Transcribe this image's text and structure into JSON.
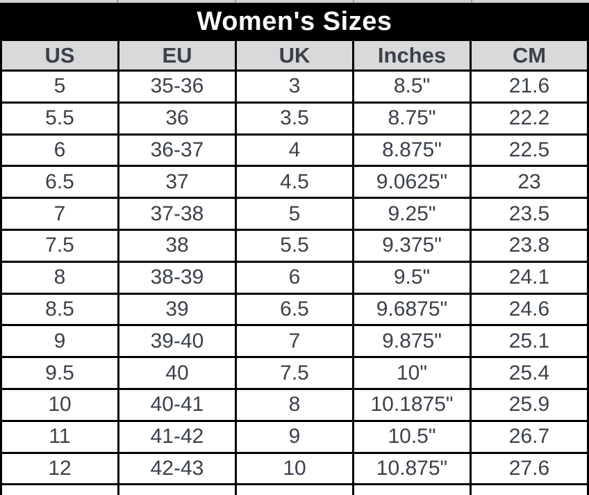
{
  "colors": {
    "title_bg": "#000000",
    "title_text": "#ffffff",
    "header_bg": "#d9d9d9",
    "cell_text": "#3a414b",
    "border": "#000000",
    "top_strip": "#d3d3d3"
  },
  "chart_data": {
    "type": "table",
    "title": "Women's Sizes",
    "columns": [
      "US",
      "EU",
      "UK",
      "Inches",
      "CM"
    ],
    "rows": [
      [
        "5",
        "35-36",
        "3",
        "8.5\"",
        "21.6"
      ],
      [
        "5.5",
        "36",
        "3.5",
        "8.75\"",
        "22.2"
      ],
      [
        "6",
        "36-37",
        "4",
        "8.875\"",
        "22.5"
      ],
      [
        "6.5",
        "37",
        "4.5",
        "9.0625\"",
        "23"
      ],
      [
        "7",
        "37-38",
        "5",
        "9.25\"",
        "23.5"
      ],
      [
        "7.5",
        "38",
        "5.5",
        "9.375\"",
        "23.8"
      ],
      [
        "8",
        "38-39",
        "6",
        "9.5\"",
        "24.1"
      ],
      [
        "8.5",
        "39",
        "6.5",
        "9.6875\"",
        "24.6"
      ],
      [
        "9",
        "39-40",
        "7",
        "9.875\"",
        "25.1"
      ],
      [
        "9.5",
        "40",
        "7.5",
        "10\"",
        "25.4"
      ],
      [
        "10",
        "40-41",
        "8",
        "10.1875\"",
        "25.9"
      ],
      [
        "11",
        "41-42",
        "9",
        "10.5\"",
        "26.7"
      ],
      [
        "12",
        "42-43",
        "10",
        "10.875\"",
        "27.6"
      ]
    ]
  }
}
